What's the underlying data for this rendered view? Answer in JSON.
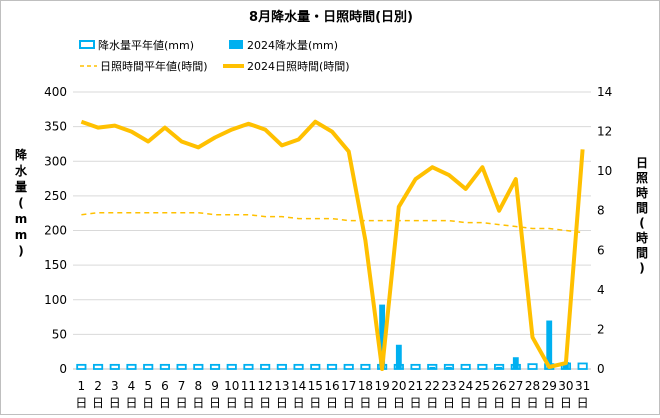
{
  "chart_data": {
    "type": "bar+line",
    "title": "8月降水量・日照時間(日別)",
    "categories": [
      "1日",
      "2日",
      "3日",
      "4日",
      "5日",
      "6日",
      "7日",
      "8日",
      "9日",
      "10日",
      "11日",
      "12日",
      "13日",
      "14日",
      "15日",
      "16日",
      "17日",
      "18日",
      "19日",
      "20日",
      "21日",
      "22日",
      "23日",
      "24日",
      "25日",
      "26日",
      "27日",
      "28日",
      "29日",
      "30日",
      "31日"
    ],
    "y_left": {
      "label_chars": [
        "降",
        "水",
        "量",
        "(",
        "m",
        "m",
        ")"
      ],
      "ticks": [
        0,
        50,
        100,
        150,
        200,
        250,
        300,
        350,
        400
      ],
      "lim": [
        0,
        400
      ]
    },
    "y_right": {
      "label_chars": [
        "日",
        "照",
        "時",
        "間",
        "(",
        "時",
        "間",
        ")"
      ],
      "ticks": [
        0,
        2,
        4,
        6,
        8,
        10,
        12,
        14
      ],
      "lim": [
        0,
        14
      ]
    },
    "series": [
      {
        "name": "降水量平年値(mm)",
        "type": "bar",
        "axis": "left",
        "color": "#00b0f0",
        "style": "outline",
        "values": [
          6,
          6,
          6,
          6,
          6,
          6,
          6,
          6,
          6,
          6,
          6,
          6,
          6,
          6,
          6,
          6,
          6,
          6,
          6,
          6,
          6,
          6,
          6,
          6,
          6,
          6,
          6,
          7,
          7,
          8,
          8
        ]
      },
      {
        "name": "2024降水量(mm)",
        "type": "bar",
        "axis": "left",
        "color": "#00b0f0",
        "style": "solid",
        "values": [
          0,
          0,
          0,
          0,
          0,
          0,
          0,
          0,
          0,
          0,
          0,
          0,
          0,
          0,
          0,
          0,
          0,
          0,
          93,
          35,
          0,
          3,
          3,
          0,
          0,
          3,
          17,
          0,
          70,
          10,
          0
        ]
      },
      {
        "name": "日照時間平年値(時間)",
        "type": "line",
        "axis": "right",
        "color": "#ffc000",
        "style": "dashed",
        "values": [
          7.8,
          7.9,
          7.9,
          7.9,
          7.9,
          7.9,
          7.9,
          7.9,
          7.8,
          7.8,
          7.8,
          7.7,
          7.7,
          7.6,
          7.6,
          7.6,
          7.5,
          7.5,
          7.5,
          7.5,
          7.5,
          7.5,
          7.5,
          7.4,
          7.4,
          7.3,
          7.2,
          7.1,
          7.1,
          7.0,
          6.9
        ]
      },
      {
        "name": "2024日照時間(時間)",
        "type": "line",
        "axis": "right",
        "color": "#ffc000",
        "style": "solid",
        "values": [
          12.5,
          12.2,
          12.3,
          12.0,
          11.5,
          12.2,
          11.5,
          11.2,
          11.7,
          12.1,
          12.4,
          12.1,
          11.3,
          11.6,
          12.5,
          12.0,
          11.0,
          6.5,
          0.0,
          8.2,
          9.6,
          10.2,
          9.8,
          9.1,
          10.2,
          8.0,
          9.6,
          1.6,
          0.1,
          0.3,
          11.1
        ]
      }
    ],
    "legend_position": "top-left",
    "grid": "horizontal"
  }
}
